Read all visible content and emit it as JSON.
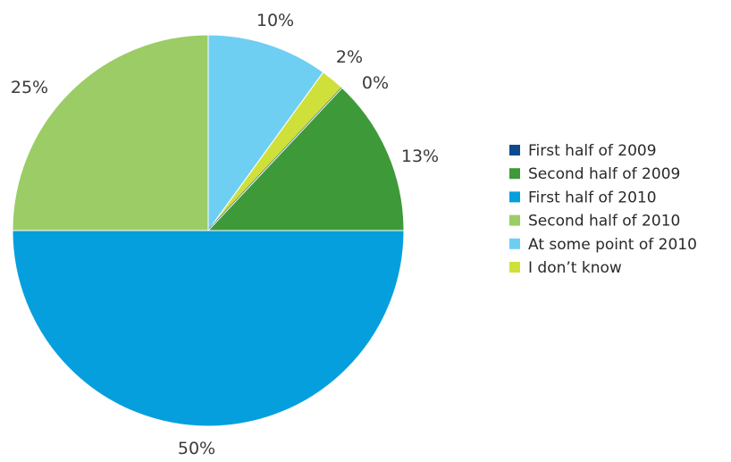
{
  "chart_data": {
    "type": "pie",
    "slices": [
      {
        "label": "First half of 2009",
        "value": 0,
        "display": "0%",
        "color": "#0b4a8c"
      },
      {
        "label": "Second half of 2009",
        "value": 13,
        "display": "13%",
        "color": "#3e9a38"
      },
      {
        "label": "First half of 2010",
        "value": 50,
        "display": "50%",
        "color": "#069fdd"
      },
      {
        "label": "Second half of 2010",
        "value": 25,
        "display": "25%",
        "color": "#9ccc65"
      },
      {
        "label": "At some point of 2010",
        "value": 10,
        "display": "10%",
        "color": "#6ecff3"
      },
      {
        "label": "I don’t know",
        "value": 2,
        "display": "2%",
        "color": "#cfe03a"
      }
    ],
    "legend_position": "right",
    "title": ""
  }
}
